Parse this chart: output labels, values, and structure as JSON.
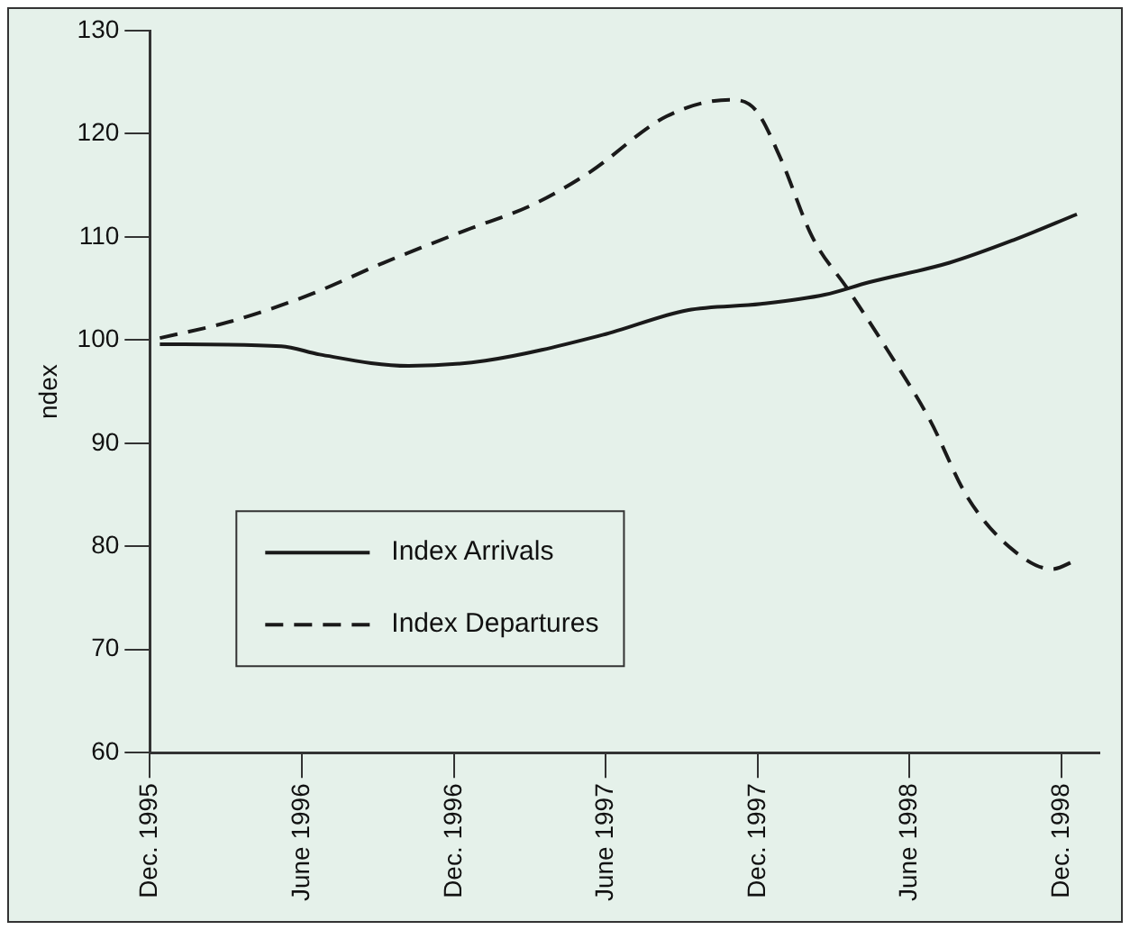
{
  "chart_data": {
    "type": "line",
    "ylabel": "ndex",
    "xlim": [
      "1995-12-01",
      "1999-01-15"
    ],
    "ylim": [
      60,
      130
    ],
    "xticks": [
      {
        "value": "1995-12",
        "label": "Dec. 1995"
      },
      {
        "value": "1996-06",
        "label": "June 1996"
      },
      {
        "value": "1996-12",
        "label": "Dec. 1996"
      },
      {
        "value": "1997-06",
        "label": "June 1997"
      },
      {
        "value": "1997-12",
        "label": "Dec. 1997"
      },
      {
        "value": "1998-06",
        "label": "June 1998"
      },
      {
        "value": "1998-12",
        "label": "Dec. 1998"
      }
    ],
    "yticks": [
      60,
      70,
      80,
      90,
      100,
      110,
      120,
      130
    ],
    "grid": false,
    "legend": "bottom left",
    "marker": "none",
    "series": [
      {
        "name": "Index Arrivals",
        "color": "#1a1a1a",
        "line_style": "solid",
        "x": [
          "1995-12-13",
          "1996-05-07",
          "1996-06-22",
          "1996-10-07",
          "1997-01-07",
          "1997-05-28",
          "1997-09-07",
          "1997-12-04",
          "1998-02-19",
          "1998-04-13",
          "1998-07-19",
          "1998-10-04",
          "1998-12-19"
        ],
        "values": [
          99.6,
          99.4,
          98.6,
          97.5,
          98,
          100.5,
          102.9,
          103.5,
          104.4,
          105.6,
          107.5,
          109.7,
          112.2
        ]
      },
      {
        "name": "Index Departures",
        "color": "#1a1a1a",
        "line_style": "dashed",
        "x": [
          "1995-12-13",
          "1996-03-07",
          "1996-06-07",
          "1996-09-07",
          "1996-12-13",
          "1997-03-07",
          "1997-05-13",
          "1997-08-13",
          "1997-10-28",
          "1997-11-28",
          "1997-12-28",
          "1998-02-04",
          "1998-03-19",
          "1998-05-04",
          "1998-06-25",
          "1998-08-10",
          "1998-10-04",
          "1998-11-19",
          "1998-12-19"
        ],
        "values": [
          100.2,
          101.8,
          104.3,
          107.5,
          110.6,
          113.2,
          116.3,
          121.7,
          123.3,
          122.3,
          117.6,
          110,
          104.9,
          99.2,
          92.3,
          84.7,
          79.6,
          77.8,
          78.7
        ]
      }
    ]
  }
}
